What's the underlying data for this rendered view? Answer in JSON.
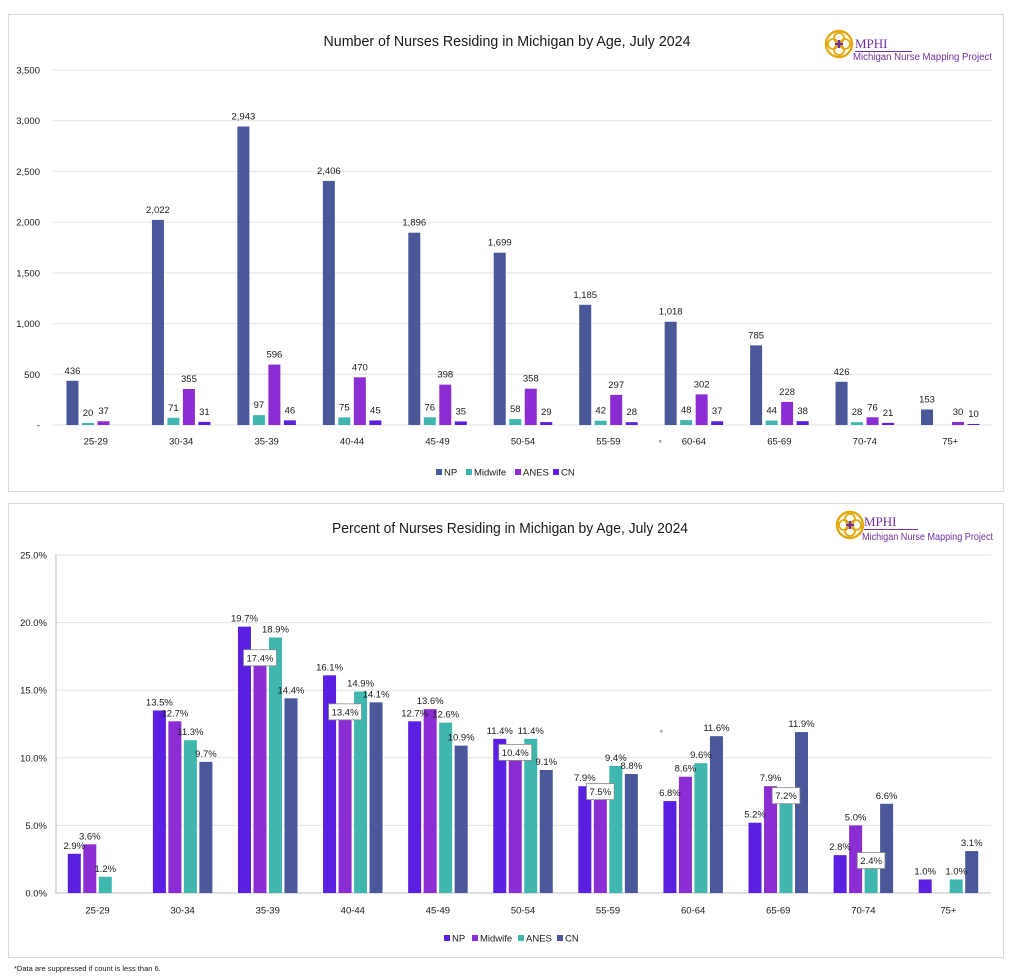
{
  "logo": {
    "org": "MPHI",
    "project": "Michigan Nurse Mapping Project"
  },
  "footnote": "*Data are suppressed if count is less than 6.",
  "chart_data": [
    {
      "type": "bar",
      "title": "Number of Nurses Residing in Michigan by Age, July 2024",
      "xlabel": "",
      "ylabel": "",
      "ylim": [
        0,
        3500
      ],
      "yticks": [
        0,
        500,
        1000,
        1500,
        2000,
        2500,
        3000,
        3500
      ],
      "ytick_labels": [
        "-",
        "500",
        "1,000",
        "1,500",
        "2,000",
        "2,500",
        "3,000",
        "3,500"
      ],
      "grid": true,
      "legend": "bottom",
      "categories": [
        "25-29",
        "30-34",
        "35-39",
        "40-44",
        "45-49",
        "50-54",
        "55-59",
        "60-64",
        "65-69",
        "70-74",
        "75+"
      ],
      "series": [
        {
          "name": "NP",
          "color": "#4a5798",
          "values": [
            436,
            2022,
            2943,
            2406,
            1896,
            1699,
            1185,
            1018,
            785,
            426,
            153
          ],
          "labels": [
            "436",
            "2,022",
            "2,943",
            "2,406",
            "1,896",
            "1,699",
            "1,185",
            "1,018",
            "785",
            "426",
            "153"
          ]
        },
        {
          "name": "Midwife",
          "color": "#3fb7ae",
          "values": [
            20,
            71,
            97,
            75,
            76,
            58,
            42,
            48,
            44,
            28,
            null
          ],
          "labels": [
            "20",
            "71",
            "97",
            "75",
            "76",
            "58",
            "42",
            "48",
            "44",
            "28",
            null
          ]
        },
        {
          "name": "ANES",
          "color": "#8a2ed4",
          "values": [
            37,
            355,
            596,
            470,
            398,
            358,
            297,
            302,
            228,
            76,
            30
          ],
          "labels": [
            "37",
            "355",
            "596",
            "470",
            "398",
            "358",
            "297",
            "302",
            "228",
            "76",
            "30"
          ]
        },
        {
          "name": "CN",
          "color": "#5a1fe0",
          "values": [
            null,
            31,
            46,
            45,
            35,
            29,
            28,
            37,
            38,
            21,
            10
          ],
          "labels": [
            null,
            "31",
            "46",
            "45",
            "35",
            "29",
            "28",
            "37",
            "38",
            "21",
            "10"
          ]
        }
      ]
    },
    {
      "type": "bar",
      "title": "Percent of Nurses Residing in Michigan by Age, July 2024",
      "xlabel": "",
      "ylabel": "",
      "ylim": [
        0,
        25
      ],
      "yticks": [
        0,
        5,
        10,
        15,
        20,
        25
      ],
      "ytick_labels": [
        "0.0%",
        "5.0%",
        "10.0%",
        "15.0%",
        "20.0%",
        "25.0%"
      ],
      "grid": true,
      "legend": "bottom",
      "categories": [
        "25-29",
        "30-34",
        "35-39",
        "40-44",
        "45-49",
        "50-54",
        "55-59",
        "60-64",
        "65-69",
        "70-74",
        "75+"
      ],
      "series": [
        {
          "name": "NP",
          "color": "#5a1fe0",
          "values": [
            2.9,
            13.5,
            19.7,
            16.1,
            12.7,
            11.4,
            7.9,
            6.8,
            5.2,
            2.8,
            1.0
          ],
          "labels": [
            "2.9%",
            "13.5%",
            "19.7%",
            "16.1%",
            "12.7%",
            "11.4%",
            "7.9%",
            "6.8%",
            "5.2%",
            "2.8%",
            "1.0%"
          ]
        },
        {
          "name": "Midwife",
          "color": "#8a2ed4",
          "values": [
            3.6,
            12.7,
            17.4,
            13.4,
            13.6,
            10.4,
            7.5,
            8.6,
            7.9,
            5.0,
            null
          ],
          "labels": [
            "3.6%",
            "12.7%",
            "17.4%",
            "13.4%",
            "13.6%",
            "10.4%",
            "7.5%",
            "8.6%",
            "7.9%",
            "5.0%",
            null
          ]
        },
        {
          "name": "ANES",
          "color": "#3fb7ae",
          "values": [
            1.2,
            11.3,
            18.9,
            14.9,
            12.6,
            11.4,
            9.4,
            9.6,
            7.2,
            2.4,
            1.0
          ],
          "labels": [
            "1.2%",
            "11.3%",
            "18.9%",
            "14.9%",
            "12.6%",
            "11.4%",
            "9.4%",
            "9.6%",
            "7.2%",
            "2.4%",
            "1.0%"
          ]
        },
        {
          "name": "CN",
          "color": "#4a5798",
          "values": [
            null,
            9.7,
            14.4,
            14.1,
            10.9,
            9.1,
            8.8,
            11.6,
            11.9,
            6.6,
            3.1
          ],
          "labels": [
            null,
            "9.7%",
            "14.4%",
            "14.1%",
            "10.9%",
            "9.1%",
            "8.8%",
            "11.6%",
            "11.9%",
            "6.6%",
            "3.1%"
          ]
        }
      ]
    }
  ]
}
